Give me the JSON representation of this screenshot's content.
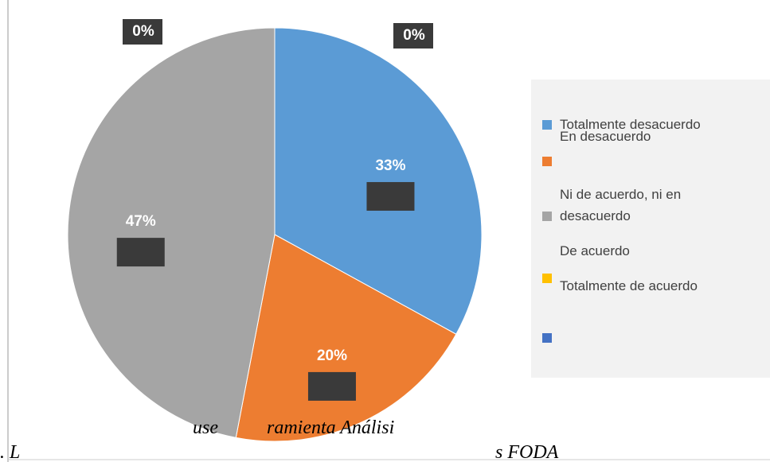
{
  "chart_data": {
    "type": "pie",
    "categories": [
      "Totalmente desacuerdo",
      "En desacuerdo",
      "Ni de acuerdo, ni en desacuerdo",
      "De acuerdo",
      "Totalmente de acuerdo"
    ],
    "values": [
      33,
      20,
      47,
      0,
      0
    ],
    "value_labels": [
      "33%",
      "20%",
      "47%",
      "0%",
      "0%"
    ],
    "colors": [
      "#5b9bd5",
      "#ed7d31",
      "#a5a5a5",
      "#ffc000",
      "#4472c4"
    ],
    "legend": "right",
    "caption": [
      "use",
      "ramienta Análisi",
      ". L",
      "s FODA"
    ]
  }
}
